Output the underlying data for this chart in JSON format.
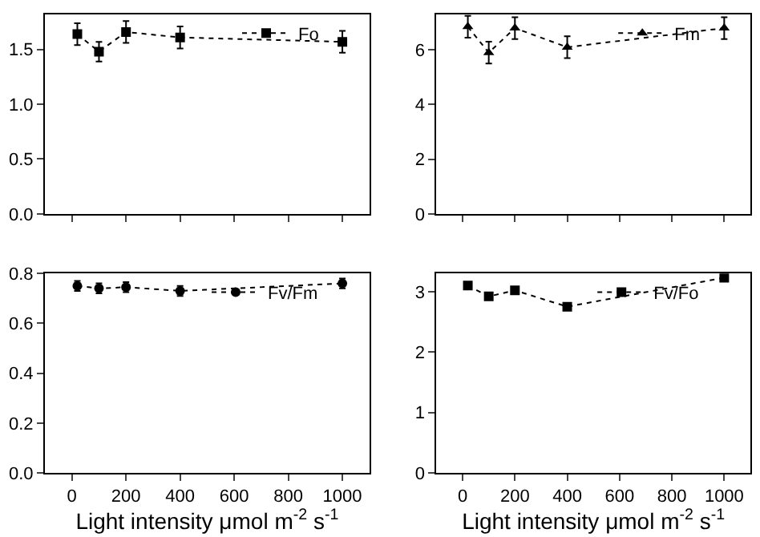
{
  "chart_data": [
    {
      "type": "line",
      "x": [
        20,
        100,
        200,
        400,
        1000
      ],
      "series": [
        {
          "name": "Fo",
          "color": "#000000",
          "values": [
            1.64,
            1.48,
            1.66,
            1.61,
            1.57
          ],
          "errors": [
            0.1,
            0.09,
            0.1,
            0.1,
            0.1
          ]
        }
      ],
      "xlim": [
        -100,
        1100
      ],
      "xticks": [
        0,
        200,
        400,
        600,
        800,
        1000
      ],
      "ylim": [
        0,
        1.82
      ],
      "yticks": [
        {
          "value": 0,
          "label": "0.0"
        },
        {
          "value": 0.5,
          "label": "0.5"
        },
        {
          "value": 1,
          "label": "1.0"
        },
        {
          "value": 1.5,
          "label": "1.5"
        }
      ],
      "tick_labels": "y",
      "marker": "square",
      "line_style": "dotted",
      "legend": "top right"
    },
    {
      "type": "line",
      "x": [
        20,
        100,
        200,
        400,
        1000
      ],
      "series": [
        {
          "name": "Fm",
          "color": "#000000",
          "values": [
            6.85,
            5.9,
            6.8,
            6.1,
            6.8
          ],
          "errors": [
            0.4,
            0.4,
            0.4,
            0.4,
            0.4
          ]
        }
      ],
      "xlim": [
        -100,
        1100
      ],
      "xticks": [
        0,
        200,
        400,
        600,
        800,
        1000
      ],
      "ylim": [
        0,
        7.3
      ],
      "yticks": [
        0,
        2,
        4,
        6
      ],
      "tick_labels": "y",
      "marker": "triangle",
      "line_style": "dotted",
      "legend": "top right"
    },
    {
      "type": "line",
      "x": [
        20,
        100,
        200,
        400,
        1000
      ],
      "series": [
        {
          "name": "Fv/Fm",
          "color": "#000000",
          "values": [
            0.75,
            0.74,
            0.745,
            0.73,
            0.76
          ],
          "errors": [
            0.02,
            0.02,
            0.02,
            0.02,
            0.02
          ]
        }
      ],
      "xlim": [
        -100,
        1100
      ],
      "xticks": [
        0,
        200,
        400,
        600,
        800,
        1000
      ],
      "ylim": [
        0,
        0.8
      ],
      "yticks": [
        {
          "value": 0,
          "label": "0.0"
        },
        {
          "value": 0.2,
          "label": "0.2"
        },
        {
          "value": 0.4,
          "label": "0.4"
        },
        {
          "value": 0.6,
          "label": "0.6"
        },
        {
          "value": 0.8,
          "label": "0.8"
        }
      ],
      "xlabel": "Light intensity μmol m$^{-2}$ s$^{-1}$",
      "marker": "circle",
      "line_style": "dotted",
      "legend": "top right"
    },
    {
      "type": "line",
      "x": [
        20,
        100,
        200,
        400,
        1000
      ],
      "series": [
        {
          "name": "Fv/Fo",
          "color": "#000000",
          "values": [
            3.1,
            2.92,
            3.02,
            2.75,
            3.23
          ]
        }
      ],
      "xlim": [
        -100,
        1100
      ],
      "xticks": [
        0,
        200,
        400,
        600,
        800,
        1000
      ],
      "ylim": [
        0,
        3.3
      ],
      "yticks": [
        0,
        1,
        2,
        3
      ],
      "xlabel": "Light intensity μmol m$^{-2}$ s$^{-1}$",
      "marker": "square",
      "line_style": "dotted",
      "legend": "top right"
    }
  ]
}
